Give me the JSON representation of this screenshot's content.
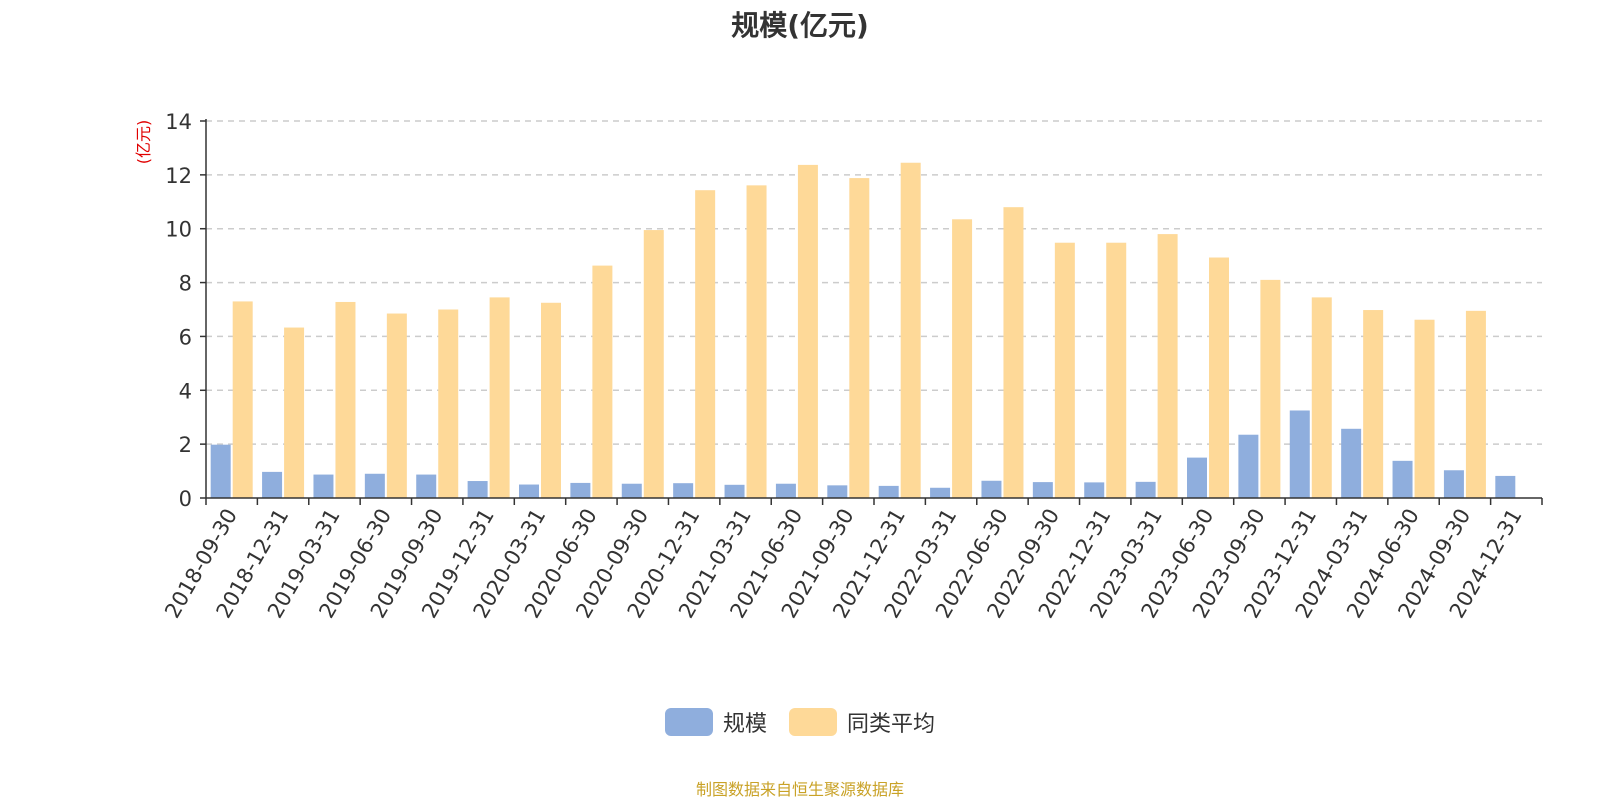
{
  "title": "规模(亿元)",
  "footer": "制图数据来自恒生聚源数据库",
  "colors": {
    "series1": "#8faedd",
    "series2": "#fed998",
    "ylabel": "#e00000",
    "grid": "#cccccc",
    "axis": "#333333"
  },
  "chart_data": {
    "type": "bar",
    "title": "规模(亿元)",
    "ylabel": "(亿元)",
    "xlabel": "",
    "ylim": [
      0,
      14
    ],
    "yticks": [
      0,
      2,
      4,
      6,
      8,
      10,
      12,
      14
    ],
    "grid": true,
    "legend_position": "bottom-center",
    "categories": [
      "2018-09-30",
      "2018-12-31",
      "2019-03-31",
      "2019-06-30",
      "2019-09-30",
      "2019-12-31",
      "2020-03-31",
      "2020-06-30",
      "2020-09-30",
      "2020-12-31",
      "2021-03-31",
      "2021-06-30",
      "2021-09-30",
      "2021-12-31",
      "2022-03-31",
      "2022-06-30",
      "2022-09-30",
      "2022-12-31",
      "2023-03-31",
      "2023-06-30",
      "2023-09-30",
      "2023-12-31",
      "2024-03-31",
      "2024-06-30",
      "2024-09-30",
      "2024-12-31"
    ],
    "series": [
      {
        "name": "规模",
        "color": "#8faedd",
        "values": [
          1.98,
          0.97,
          0.87,
          0.9,
          0.87,
          0.63,
          0.5,
          0.56,
          0.53,
          0.55,
          0.49,
          0.53,
          0.47,
          0.45,
          0.38,
          0.64,
          0.59,
          0.58,
          0.6,
          1.5,
          2.35,
          3.25,
          2.57,
          1.38,
          1.03,
          0.82
        ]
      },
      {
        "name": "同类平均",
        "color": "#fed998",
        "values": [
          7.3,
          6.33,
          7.28,
          6.85,
          7.0,
          7.45,
          7.25,
          8.63,
          9.95,
          11.43,
          11.61,
          12.37,
          11.88,
          12.45,
          10.35,
          10.8,
          9.48,
          9.48,
          9.8,
          8.93,
          8.1,
          7.45,
          6.98,
          6.62,
          6.95,
          null
        ]
      }
    ]
  }
}
